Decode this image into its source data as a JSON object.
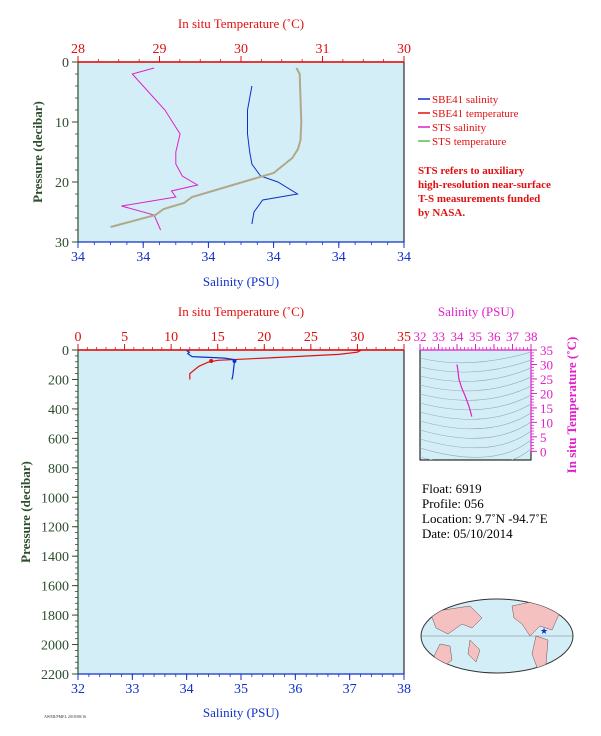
{
  "colors": {
    "red": "#e01010",
    "blue": "#1030c8",
    "magenta": "#e020c8",
    "tan": "#b0a888",
    "green": "#50c050",
    "darkgreen": "#2e4d2e",
    "panel_bg": "#d3eef7"
  },
  "chart_data": [
    {
      "type": "line",
      "title": "",
      "x_top_label": "In situ Temperature (˚C)",
      "x_top_ticks": [
        "28",
        "29",
        "30",
        "31",
        "30"
      ],
      "x_top_range": [
        28,
        32
      ],
      "x_bottom_label": "Salinity (PSU)",
      "x_bottom_ticks": [
        "34",
        "34",
        "34",
        "34",
        "34",
        "34"
      ],
      "x_bottom_range": [
        33.5,
        35.0
      ],
      "ylabel": "Pressure (decibar)",
      "y_ticks": [
        "0",
        "10",
        "20",
        "30"
      ],
      "ylim": [
        30,
        0
      ],
      "series": [
        {
          "name": "SBE41 salinity",
          "color": "#1030c8",
          "x": [
            34.3,
            34.28,
            34.28,
            34.29,
            34.3,
            34.31,
            34.34,
            34.42,
            34.51,
            34.35,
            34.31,
            34.3
          ],
          "y": [
            4,
            8,
            12,
            15,
            17,
            17.5,
            19,
            20,
            22,
            23,
            25,
            27
          ]
        },
        {
          "name": "STS salinity",
          "color": "#e020c8",
          "x": [
            33.85,
            33.75,
            33.9,
            33.97,
            33.95,
            33.95,
            33.98,
            34.05,
            33.93,
            33.95,
            33.7,
            33.85,
            33.88
          ],
          "y": [
            1,
            2,
            8,
            12,
            15,
            17,
            19,
            20.5,
            21.5,
            22.5,
            24,
            25.5,
            28
          ]
        },
        {
          "name": "STS temperature",
          "color": "#b0a888",
          "x": [
            30.68,
            30.72,
            30.74,
            30.73,
            30.7,
            30.63,
            30.4,
            29.9,
            29.4,
            29.3,
            29.05,
            28.95,
            28.4
          ],
          "y": [
            1,
            2,
            10,
            13,
            14.5,
            16,
            18.5,
            20.5,
            22.5,
            23.5,
            24.5,
            25.5,
            27.5
          ]
        }
      ],
      "legend": [
        "SBE41 salinity",
        "SBE41 temperature",
        "STS salinity",
        "STS temperature"
      ],
      "legend_placement": "right"
    },
    {
      "type": "line",
      "title": "",
      "x_top_label": "In situ Temperature (˚C)",
      "x_top_ticks": [
        "0",
        "5",
        "10",
        "15",
        "20",
        "25",
        "30",
        "35"
      ],
      "x_top_range": [
        0,
        35
      ],
      "x_bottom_label": "Salinity (PSU)",
      "x_bottom_ticks": [
        "32",
        "33",
        "34",
        "35",
        "36",
        "37",
        "38"
      ],
      "x_bottom_range": [
        32,
        38
      ],
      "ylabel": "Pressure (decibar)",
      "y_ticks": [
        "0",
        "200",
        "400",
        "600",
        "800",
        "1000",
        "1200",
        "1400",
        "1600",
        "1800",
        "2000",
        "2200"
      ],
      "ylim": [
        2200,
        0
      ],
      "series": [
        {
          "name": "SBE41 temperature",
          "color": "#e01010",
          "temp": [
            29.5,
            30.3,
            30.0,
            28.0,
            20.0,
            15.0,
            14.0,
            13.0,
            12.5,
            12.0,
            12.0,
            12.0
          ],
          "p": [
            2,
            5,
            15,
            30,
            55,
            70,
            82,
            110,
            135,
            160,
            180,
            200
          ]
        },
        {
          "name": "SBE41 salinity",
          "color": "#1030c8",
          "sal": [
            34.0,
            34.05,
            34.02,
            34.1,
            34.7,
            34.88,
            34.88,
            34.87,
            34.86,
            34.85,
            34.84,
            34.83
          ],
          "p": [
            5,
            15,
            25,
            45,
            55,
            65,
            80,
            110,
            140,
            170,
            190,
            200
          ]
        }
      ]
    },
    {
      "type": "scatter",
      "title": "",
      "xlabel": "Salinity (PSU)",
      "ylabel": "In situ Temperature (˚C)",
      "x_ticks": [
        "32",
        "33",
        "34",
        "35",
        "36",
        "37",
        "38"
      ],
      "y_ticks": [
        "0",
        "5",
        "10",
        "15",
        "20",
        "25",
        "30",
        "35"
      ],
      "xlim": [
        32,
        38
      ],
      "ylim": [
        -3,
        35
      ],
      "series": [
        {
          "name": "T-S profile",
          "color": "#e020c8",
          "sal": [
            34.0,
            34.05,
            34.1,
            34.25,
            34.45,
            34.62,
            34.72,
            34.8
          ],
          "temp": [
            30,
            28,
            25,
            22,
            19,
            16,
            14,
            12
          ]
        }
      ]
    }
  ],
  "info": {
    "float": "Float: 6919",
    "profile": "Profile: 056",
    "location": "Location: 9.7˚N -94.7˚E",
    "date": "Date: 05/10/2014"
  },
  "note": [
    "STS refers to auxiliary",
    "high-resolution near-surface",
    "T-S measurements funded",
    "by NASA."
  ],
  "footer": "AWMI/PMEL 2018/08/16"
}
